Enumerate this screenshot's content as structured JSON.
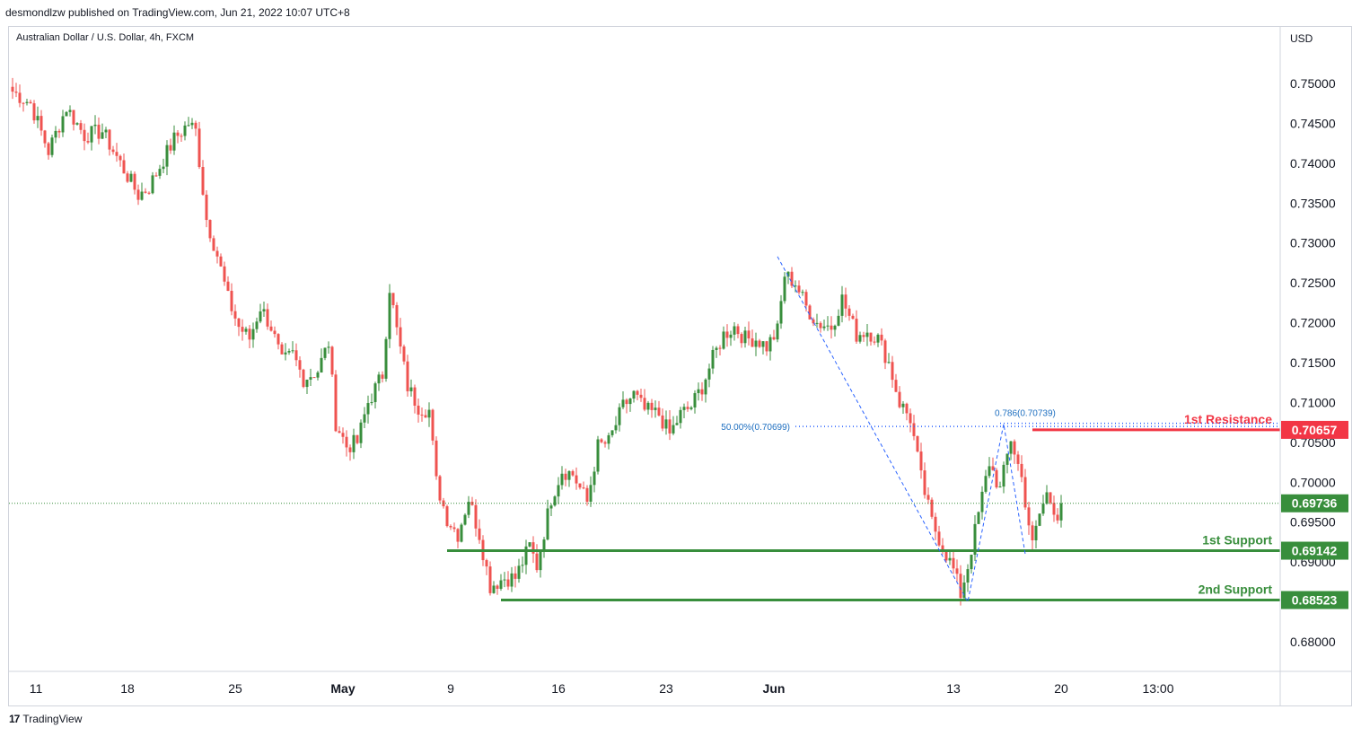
{
  "header": {
    "publisher": "desmondlzw published on TradingView.com, Jun 21, 2022 10:07 UTC+8"
  },
  "footer": {
    "brand": "TradingView",
    "logo_icon": "tradingview-logo-icon"
  },
  "colors": {
    "up": "#388e3c",
    "down": "#ef5350",
    "support": "#388e3c",
    "resistance": "#f23645",
    "fib": "#2962ff",
    "fib_text": "#1e6fc0",
    "grid_border": "#d1d4dc",
    "last_price": "#388e3c"
  },
  "chart_data": {
    "type": "candlestick",
    "title": "Australian Dollar / U.S. Dollar, 4h, FXCM",
    "currency": "USD",
    "ylim": [
      0.6755,
      0.7555
    ],
    "y_ticks": [
      "0.75000",
      "0.74500",
      "0.74000",
      "0.73500",
      "0.73000",
      "0.72500",
      "0.72000",
      "0.71500",
      "0.71000",
      "0.70500",
      "0.70000",
      "0.69500",
      "0.69000",
      "0.68500",
      "0.68000"
    ],
    "x_ticks": [
      {
        "label": "11",
        "index": 2,
        "bold": false
      },
      {
        "label": "18",
        "index": 32,
        "bold": false
      },
      {
        "label": "25",
        "index": 62,
        "bold": false
      },
      {
        "label": "May",
        "index": 92,
        "bold": true
      },
      {
        "label": "9",
        "index": 122,
        "bold": false
      },
      {
        "label": "16",
        "index": 152,
        "bold": false
      },
      {
        "label": "23",
        "index": 182,
        "bold": false
      },
      {
        "label": "Jun",
        "index": 212,
        "bold": true
      },
      {
        "label": "13",
        "index": 262,
        "bold": false
      },
      {
        "label": "20",
        "index": 292,
        "bold": false
      },
      {
        "label": "13:00",
        "index": 319,
        "bold": false
      }
    ],
    "n_bars": 320,
    "keypoints": [
      [
        0,
        0.749
      ],
      [
        5,
        0.7475
      ],
      [
        10,
        0.7415
      ],
      [
        15,
        0.747
      ],
      [
        20,
        0.7435
      ],
      [
        25,
        0.744
      ],
      [
        30,
        0.74
      ],
      [
        35,
        0.736
      ],
      [
        38,
        0.737
      ],
      [
        42,
        0.7405
      ],
      [
        45,
        0.743
      ],
      [
        49,
        0.745
      ],
      [
        51,
        0.744
      ],
      [
        54,
        0.733
      ],
      [
        57,
        0.7285
      ],
      [
        60,
        0.723
      ],
      [
        63,
        0.7195
      ],
      [
        66,
        0.718
      ],
      [
        69,
        0.722
      ],
      [
        72,
        0.7195
      ],
      [
        75,
        0.715
      ],
      [
        78,
        0.716
      ],
      [
        81,
        0.713
      ],
      [
        85,
        0.714
      ],
      [
        88,
        0.7175
      ],
      [
        90,
        0.7075
      ],
      [
        93,
        0.7045
      ],
      [
        96,
        0.705
      ],
      [
        99,
        0.71
      ],
      [
        103,
        0.7135
      ],
      [
        105,
        0.7245
      ],
      [
        107,
        0.719
      ],
      [
        110,
        0.712
      ],
      [
        113,
        0.7095
      ],
      [
        116,
        0.709
      ],
      [
        118,
        0.7
      ],
      [
        121,
        0.6955
      ],
      [
        124,
        0.6935
      ],
      [
        127,
        0.698
      ],
      [
        130,
        0.6935
      ],
      [
        133,
        0.687
      ],
      [
        137,
        0.688
      ],
      [
        140,
        0.688
      ],
      [
        144,
        0.692
      ],
      [
        146,
        0.6895
      ],
      [
        150,
        0.698
      ],
      [
        153,
        0.7015
      ],
      [
        156,
        0.701
      ],
      [
        160,
        0.6975
      ],
      [
        163,
        0.7045
      ],
      [
        166,
        0.705
      ],
      [
        170,
        0.7095
      ],
      [
        173,
        0.711
      ],
      [
        176,
        0.709
      ],
      [
        180,
        0.7085
      ],
      [
        183,
        0.706
      ],
      [
        186,
        0.7085
      ],
      [
        189,
        0.7095
      ],
      [
        192,
        0.712
      ],
      [
        195,
        0.7155
      ],
      [
        198,
        0.7185
      ],
      [
        201,
        0.7195
      ],
      [
        204,
        0.718
      ],
      [
        207,
        0.718
      ],
      [
        210,
        0.717
      ],
      [
        213,
        0.719
      ],
      [
        215,
        0.726
      ],
      [
        218,
        0.725
      ],
      [
        221,
        0.722
      ],
      [
        224,
        0.72
      ],
      [
        228,
        0.7195
      ],
      [
        231,
        0.723
      ],
      [
        235,
        0.7185
      ],
      [
        238,
        0.719
      ],
      [
        241,
        0.718
      ],
      [
        244,
        0.715
      ],
      [
        247,
        0.71
      ],
      [
        250,
        0.708
      ],
      [
        253,
        0.7005
      ],
      [
        256,
        0.695
      ],
      [
        259,
        0.692
      ],
      [
        262,
        0.689
      ],
      [
        264,
        0.686
      ],
      [
        266,
        0.6895
      ],
      [
        269,
        0.696
      ],
      [
        272,
        0.7025
      ],
      [
        275,
        0.699
      ],
      [
        278,
        0.7055
      ],
      [
        281,
        0.7005
      ],
      [
        284,
        0.692
      ],
      [
        286,
        0.696
      ],
      [
        288,
        0.6985
      ],
      [
        291,
        0.696
      ],
      [
        292,
        0.6974
      ]
    ],
    "levels": [
      {
        "name": "1st Resistance",
        "label": "1st Resistance",
        "value": 0.70657,
        "price_label": "0.70657",
        "type": "resistance",
        "start_index": 284
      },
      {
        "name": "1st Support",
        "label": "1st Support",
        "value": 0.69142,
        "price_label": "0.69142",
        "type": "support",
        "start_index": 121
      },
      {
        "name": "2nd Support",
        "label": "2nd Support",
        "value": 0.68523,
        "price_label": "0.68523",
        "type": "support",
        "start_index": 136
      }
    ],
    "last_price": {
      "value": 0.69736,
      "label": "0.69736"
    },
    "fib_levels": [
      {
        "label": "50.00%(0.70699)",
        "value": 0.70699,
        "start_index": 218
      },
      {
        "label": "0.786(0.70739)",
        "value": 0.70739,
        "start_index": 275
      }
    ],
    "fib_line": [
      [
        213,
        0.7283
      ],
      [
        266,
        0.685
      ],
      [
        276,
        0.7073
      ],
      [
        282,
        0.691
      ]
    ]
  }
}
